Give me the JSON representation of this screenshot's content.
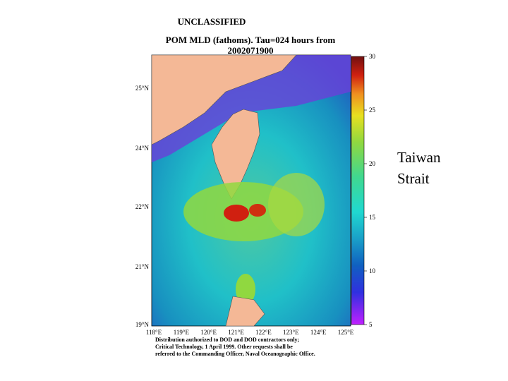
{
  "header": {
    "lines": [
      "UNCLASSIFIED",
      "POM MLD (fathoms).  Tau=024 hours from",
      "2002071900"
    ]
  },
  "map": {
    "lat_labels": [
      "25°N",
      "24°N",
      "22°N",
      "21°N",
      "19°N"
    ],
    "lon_labels": [
      "118°E",
      "119°E",
      "120°E",
      "121°E",
      "122°E",
      "123°E",
      "124°E",
      "125°E"
    ]
  },
  "colorbar": {
    "range": [
      5,
      30
    ],
    "ticks": [
      5,
      10,
      15,
      20,
      25,
      30
    ]
  },
  "footer": {
    "lines": [
      "Distribution authorized to DOD and DOD contractors only;",
      "Critical Technology, 1 April 1999.  Other requests shall be",
      "referred to the Commanding Officer, Naval Oceanographic Office."
    ]
  },
  "side_label": {
    "lines": [
      "Taiwan",
      "Strait"
    ]
  }
}
